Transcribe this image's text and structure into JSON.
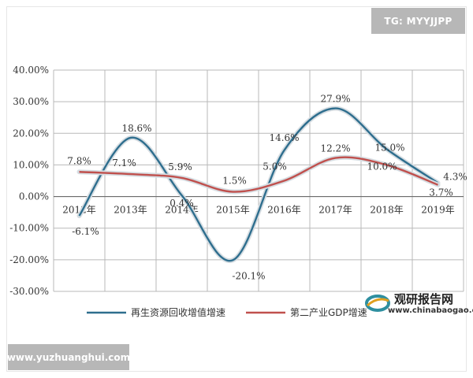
{
  "badge": "TG: MYYJJPP",
  "footer": "www.yuzhuanghui.com",
  "watermark": {
    "name": "观研报告网",
    "url": "www.chinabaogao.com"
  },
  "colors": {
    "series1": "#2e6e8e",
    "series2": "#c0504d",
    "grid": "#b9b9b9",
    "axis": "#6b6b6b"
  },
  "chart_data": {
    "type": "line",
    "categories": [
      "2012年",
      "2013年",
      "2014年",
      "2015年",
      "2016年",
      "2017年",
      "2018年",
      "2019年"
    ],
    "ylim": [
      -30,
      40
    ],
    "yticks": [
      "-30.00%",
      "-20.00%",
      "-10.00%",
      "0.00%",
      "10.00%",
      "20.00%",
      "30.00%",
      "40.00%"
    ],
    "grid": true,
    "legend_position": "bottom",
    "series": [
      {
        "name": "再生资源回收增值增速",
        "values": [
          -6.1,
          18.6,
          0.4,
          -20.1,
          14.6,
          27.9,
          15.0,
          4.3
        ],
        "labels": [
          "-6.1%",
          "18.6%",
          "0.4%",
          "-20.1%",
          "14.6%",
          "27.9%",
          "15.0%",
          "4.3%"
        ]
      },
      {
        "name": "第二产业GDP增速",
        "values": [
          7.8,
          7.1,
          5.9,
          1.5,
          5.0,
          12.2,
          10.0,
          3.7
        ],
        "labels": [
          "7.8%",
          "7.1%",
          "5.9%",
          "1.5%",
          "5.0%",
          "12.2%",
          "10.0%",
          "3.7%"
        ]
      }
    ]
  }
}
